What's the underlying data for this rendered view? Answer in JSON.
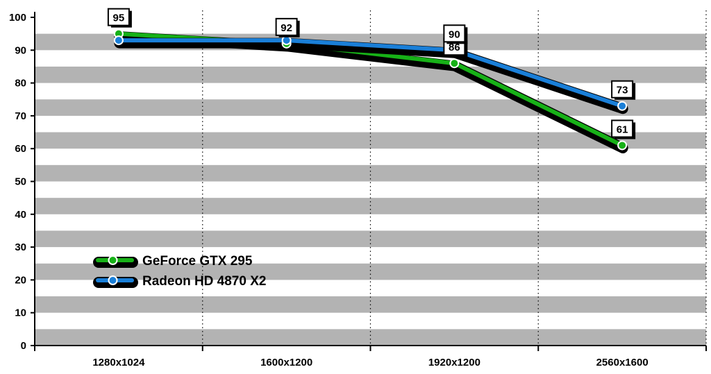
{
  "chart_data": {
    "type": "line",
    "categories": [
      "1280x1024",
      "1600x1200",
      "1920x1200",
      "2560x1600"
    ],
    "ylim": [
      0,
      100
    ],
    "yticks": [
      0,
      10,
      20,
      30,
      40,
      50,
      60,
      70,
      80,
      90,
      100
    ],
    "grid": true,
    "legend_placement": "left",
    "series": [
      {
        "name": "GeForce GTX 295",
        "values": [
          95,
          92,
          86,
          61
        ],
        "color": "#17b117"
      },
      {
        "name": "Radeon HD 4870 X2",
        "values": [
          93,
          93,
          90,
          73
        ],
        "color": "#1a7fd8"
      }
    ],
    "data_labels": {
      "GeForce GTX 295": [
        "95",
        "92",
        "86",
        "61"
      ],
      "Radeon HD 4870 X2": [
        "",
        "",
        "90",
        "73"
      ]
    },
    "colors": {
      "band": "#b3b3b3",
      "axis": "#000000",
      "outline": "#000000"
    }
  }
}
